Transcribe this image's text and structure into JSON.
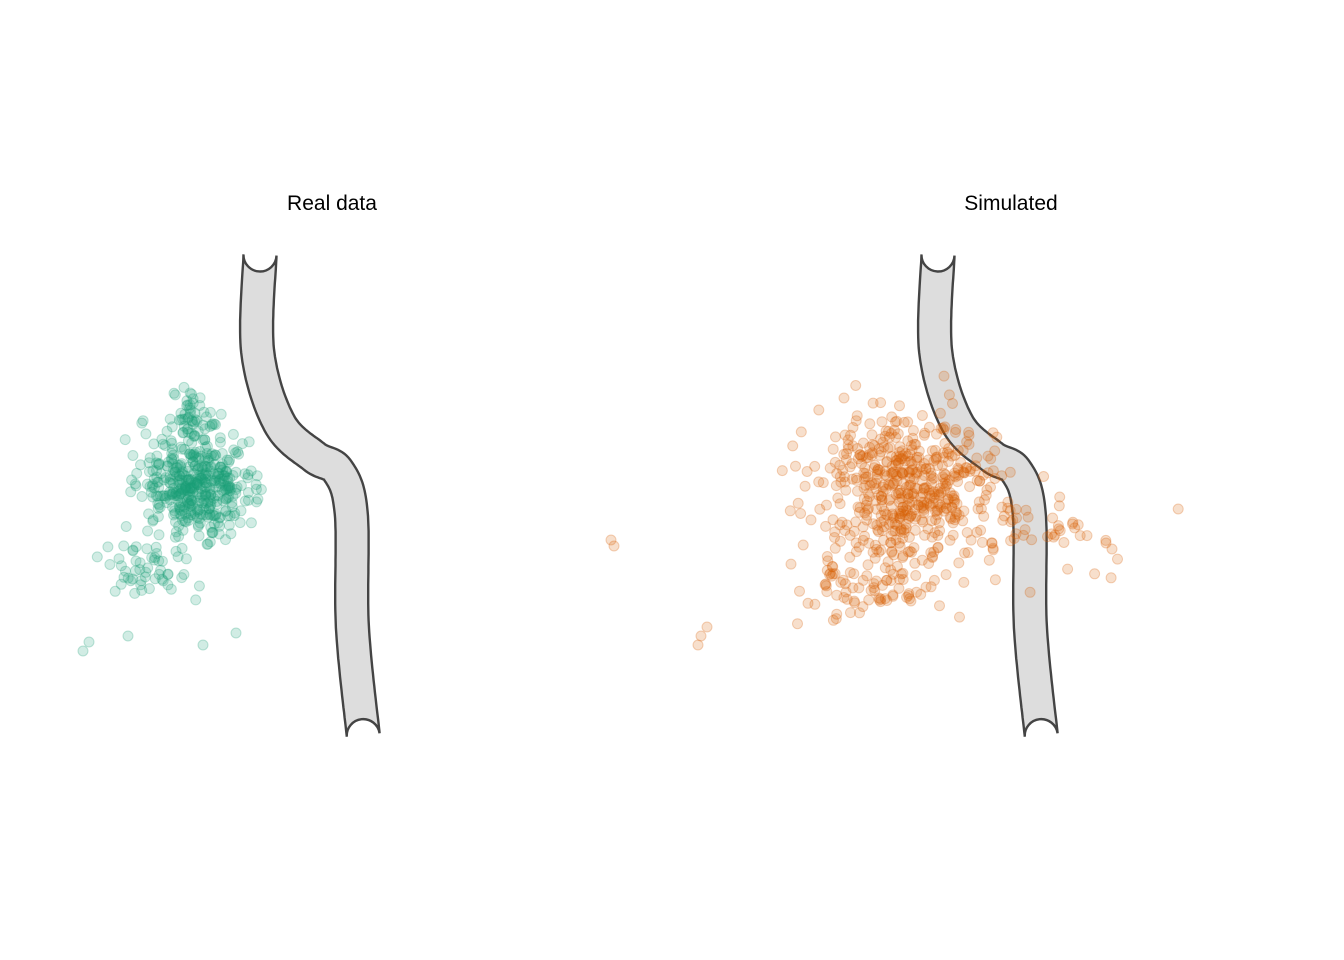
{
  "chart_data": [
    {
      "type": "scatter",
      "title": "Real data",
      "color": "#1b9e77",
      "point_opacity": 0.2,
      "axes": "none",
      "grid": false,
      "channel_centerline": [
        [
          0,
          0
        ],
        [
          -0.4,
          16
        ],
        [
          3.2,
          28
        ],
        [
          9,
          33.6
        ],
        [
          13,
          36
        ],
        [
          15.2,
          43
        ],
        [
          15.4,
          62
        ],
        [
          17.2,
          80
        ]
      ],
      "clusters": [
        {
          "cx": -10.5,
          "cy": 38.5,
          "sx": 4.6,
          "sy": 3.8,
          "n": 420
        },
        {
          "cx": -11.5,
          "cy": 27.5,
          "sx": 1.6,
          "sy": 2.6,
          "n": 55
        },
        {
          "cx": -19.0,
          "cy": 52.5,
          "sx": 3.8,
          "sy": 3.0,
          "n": 55
        }
      ],
      "outliers": [
        [
          -28.5,
          64.5
        ],
        [
          -29.5,
          66.0
        ],
        [
          -22.0,
          63.5
        ],
        [
          -9.5,
          65.0
        ],
        [
          -4.0,
          63.0
        ]
      ]
    },
    {
      "type": "scatter",
      "title": "Simulated",
      "color": "#d95f02",
      "point_opacity": 0.2,
      "axes": "none",
      "grid": false,
      "channel_centerline": [
        [
          0,
          0
        ],
        [
          -0.4,
          16
        ],
        [
          3.2,
          28
        ],
        [
          9,
          33.6
        ],
        [
          13,
          36
        ],
        [
          15.2,
          43
        ],
        [
          15.4,
          62
        ],
        [
          17.2,
          80
        ]
      ],
      "clusters": [
        {
          "cx": -5.0,
          "cy": 39.0,
          "sx": 7.2,
          "sy": 6.2,
          "n": 520
        },
        {
          "cx": -11.5,
          "cy": 54.0,
          "sx": 5.8,
          "sy": 3.6,
          "n": 90
        },
        {
          "cx": 16.0,
          "cy": 46.5,
          "sx": 7.5,
          "sy": 3.0,
          "n": 45
        }
      ],
      "outliers": [
        [
          -54.5,
          47.5
        ],
        [
          -54.0,
          48.5
        ],
        [
          -39.5,
          63.5
        ],
        [
          -38.5,
          62.0
        ],
        [
          -40.0,
          65.0
        ],
        [
          28.0,
          48.0
        ],
        [
          29.0,
          49.0
        ]
      ]
    }
  ]
}
